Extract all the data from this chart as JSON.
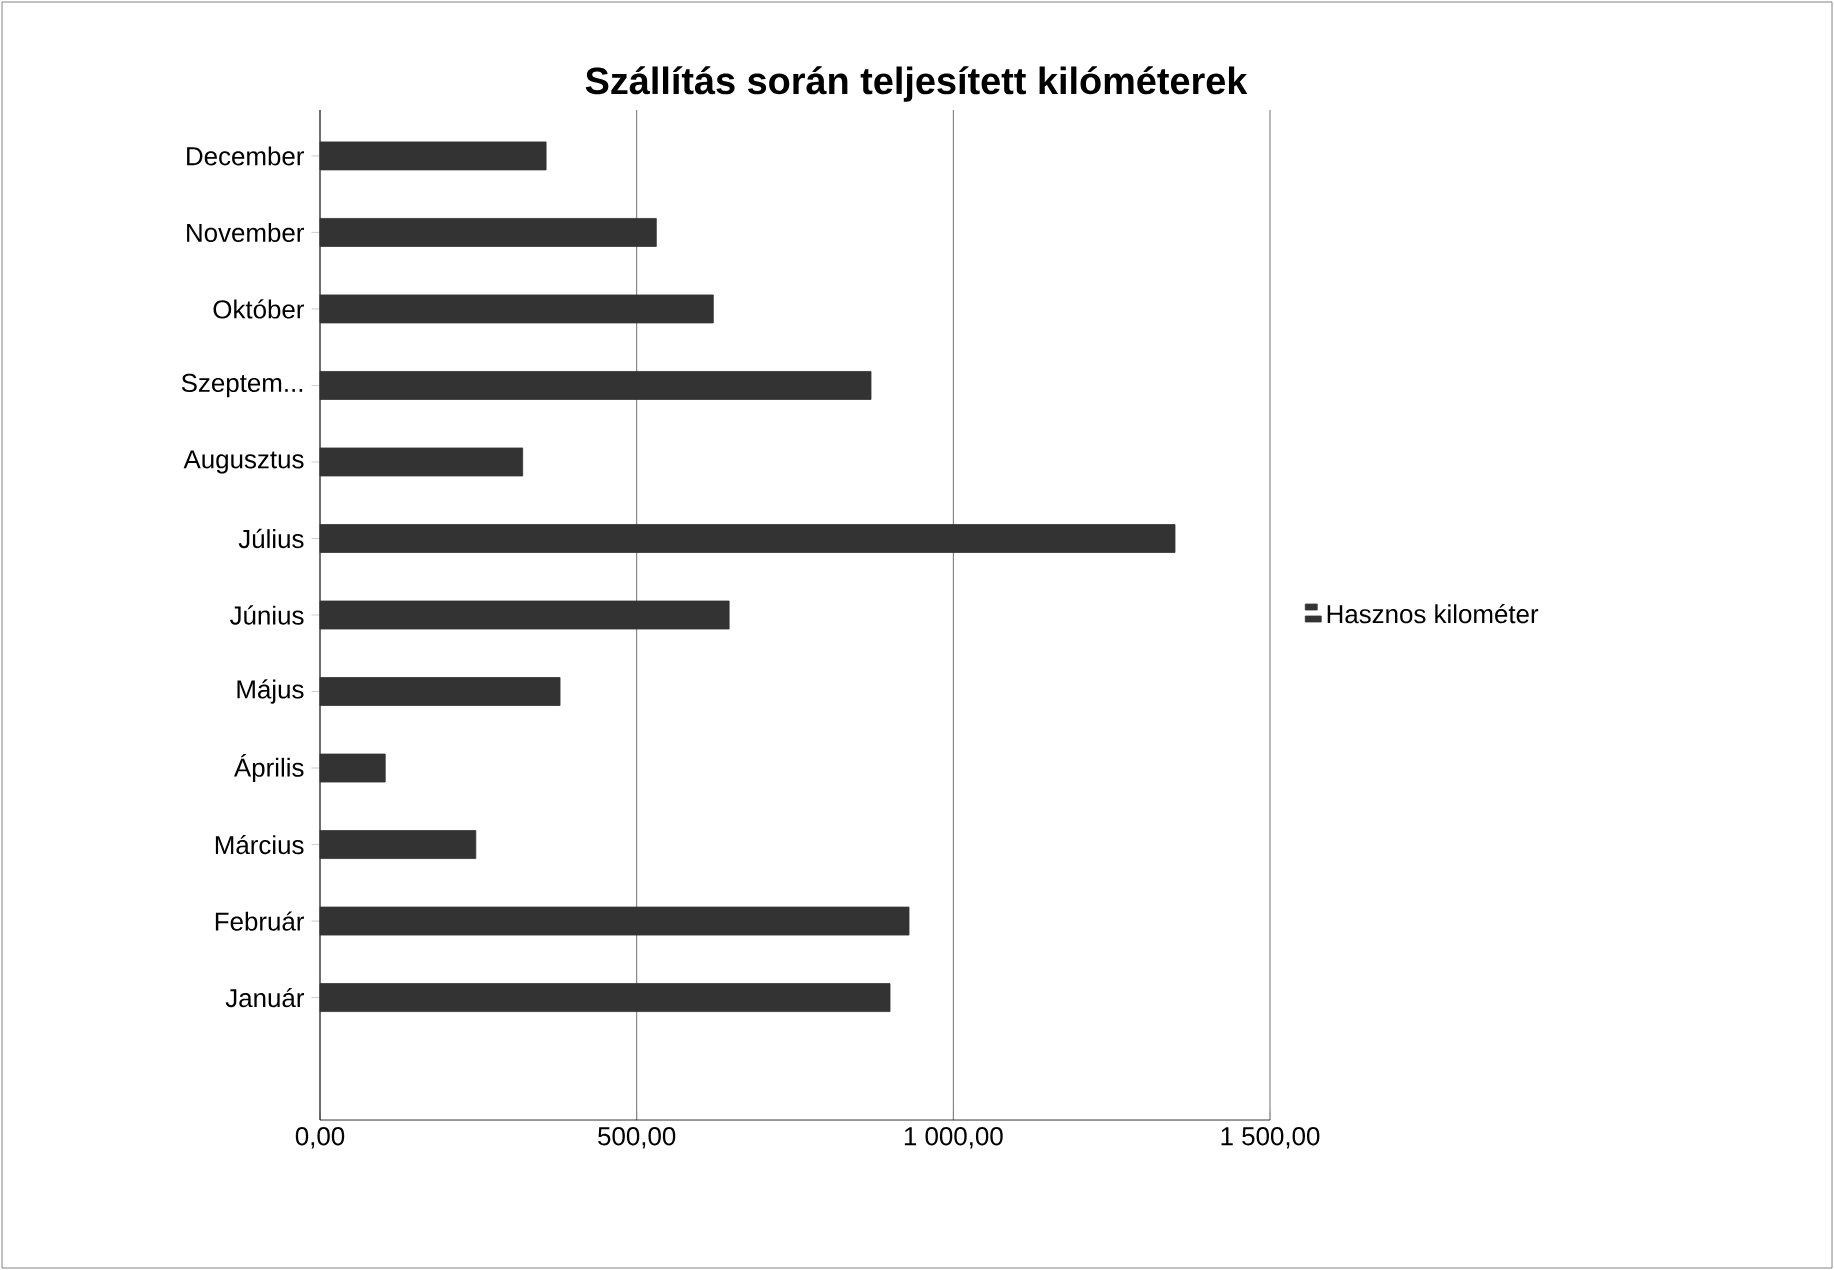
{
  "chart_data": {
    "type": "bar",
    "orientation": "horizontal",
    "title": "Szállítás során teljesített kilóméterek",
    "categories": [
      "December",
      "November",
      "Október",
      "Szeptem...",
      "Augusztus",
      "Július",
      "Június",
      "Május",
      "Április",
      "Március",
      "Február",
      "Január"
    ],
    "series": [
      {
        "name": "Hasznos kilométer",
        "color": "#333333",
        "values": [
          357,
          531,
          621,
          870,
          320,
          1350,
          646,
          379,
          103,
          246,
          930,
          900
        ]
      }
    ],
    "xlim": [
      0,
      1500
    ],
    "xticks": [
      {
        "value": 0,
        "label": "0,00"
      },
      {
        "value": 500,
        "label": "500,00"
      },
      {
        "value": 1000,
        "label": "1 000,00"
      },
      {
        "value": 1500,
        "label": "1 500,00"
      }
    ],
    "grid": "x",
    "legend": "right"
  }
}
